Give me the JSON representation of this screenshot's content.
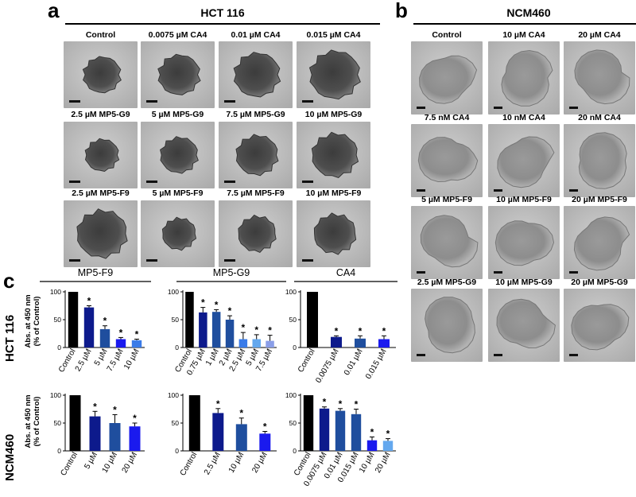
{
  "panel_a": {
    "letter": "a",
    "title": "HCT 116",
    "labels": [
      "Control",
      "0.0075 µM CA4",
      "0.01 µM CA4",
      "0.015 µM CA4",
      "2.5 µM MP5-G9",
      "5 µM MP5-G9",
      "7.5 µM MP5-G9",
      "10 µM MP5-G9",
      "2.5 µM MP5-F9",
      "5 µM MP5-F9",
      "7.5 µM MP5-F9",
      "10 µM MP5-F9"
    ]
  },
  "panel_b": {
    "letter": "b",
    "title": "NCM460",
    "labels": [
      "Control",
      "10 µM CA4",
      "20 µM CA4",
      "7.5 nM CA4",
      "10 nM CA4",
      "20 nM CA4",
      "5 µM MP5-F9",
      "10 µM MP5-F9",
      "20 µM MP5-F9",
      "2.5 µM MP5-G9",
      "10 µM MP5-G9",
      "20 µM MP5-G9"
    ]
  },
  "panel_c": {
    "letter": "c",
    "row_labels": [
      "HCT 116",
      "NCM460"
    ],
    "ylabel_line1": "Abs. at 450 nm",
    "ylabel_line2": "(% of Control)"
  },
  "colors": {
    "control": "#000000",
    "shade1": "#0d1a8c",
    "shade2": "#1f4e9e",
    "shade3": "#1a1aee",
    "shade4": "#3a7be8",
    "shade5": "#64a8ee",
    "shade6": "#8a9ee8"
  },
  "chart_data": [
    {
      "type": "bar",
      "title": "MP5-F9",
      "row": "HCT 116",
      "categories": [
        "Control",
        "2.5 µM",
        "5 µM",
        "7.5 µM",
        "10 µM"
      ],
      "values": [
        100,
        72,
        33,
        15,
        13
      ],
      "errors": [
        0,
        3,
        6,
        3,
        2
      ],
      "significant": [
        false,
        true,
        true,
        true,
        true
      ],
      "ylim": [
        0,
        100
      ],
      "yticks": [
        "0",
        "50",
        "100"
      ]
    },
    {
      "type": "bar",
      "title": "MP5-G9",
      "row": "HCT 116",
      "categories": [
        "Control",
        "0.75 µM",
        "1 µM",
        "2 µM",
        "2.5 µM",
        "5 µM",
        "7.5 µM"
      ],
      "values": [
        100,
        63,
        64,
        50,
        15,
        15,
        12
      ],
      "errors": [
        0,
        9,
        4,
        7,
        12,
        8,
        10
      ],
      "significant": [
        false,
        true,
        true,
        true,
        true,
        true,
        true
      ],
      "ylim": [
        0,
        100
      ],
      "yticks": [
        "0",
        "50",
        "100"
      ]
    },
    {
      "type": "bar",
      "title": "CA4",
      "row": "HCT 116",
      "categories": [
        "Control",
        "0.0075 µM",
        "0.01 µM",
        "0.015 µM"
      ],
      "values": [
        100,
        19,
        16,
        15
      ],
      "errors": [
        0,
        2,
        5,
        6
      ],
      "significant": [
        false,
        true,
        true,
        true
      ],
      "ylim": [
        0,
        100
      ],
      "yticks": [
        "0",
        "50",
        "100"
      ]
    },
    {
      "type": "bar",
      "title": "",
      "row": "NCM460",
      "categories": [
        "Control",
        "5 µM",
        "10 µM",
        "20 µM"
      ],
      "values": [
        100,
        62,
        50,
        44
      ],
      "errors": [
        0,
        9,
        15,
        6
      ],
      "significant": [
        false,
        true,
        true,
        true
      ],
      "ylim": [
        0,
        100
      ],
      "yticks": [
        "0",
        "50",
        "100"
      ]
    },
    {
      "type": "bar",
      "title": "",
      "row": "NCM460",
      "categories": [
        "Control",
        "2.5 µM",
        "10 µM",
        "20 µM"
      ],
      "values": [
        100,
        68,
        48,
        31
      ],
      "errors": [
        0,
        8,
        11,
        4
      ],
      "significant": [
        false,
        true,
        true,
        true
      ],
      "ylim": [
        0,
        100
      ],
      "yticks": [
        "0",
        "50",
        "100"
      ]
    },
    {
      "type": "bar",
      "title": "",
      "row": "NCM460",
      "categories": [
        "Control",
        "0.0075 µM",
        "0.01 µM",
        "0.015 µM",
        "10 µM",
        "20 µM"
      ],
      "values": [
        100,
        76,
        72,
        66,
        19,
        18
      ],
      "errors": [
        0,
        3,
        4,
        9,
        6,
        4
      ],
      "significant": [
        false,
        true,
        true,
        true,
        true,
        true
      ],
      "ylim": [
        0,
        100
      ],
      "yticks": [
        "0",
        "50",
        "100"
      ]
    }
  ]
}
